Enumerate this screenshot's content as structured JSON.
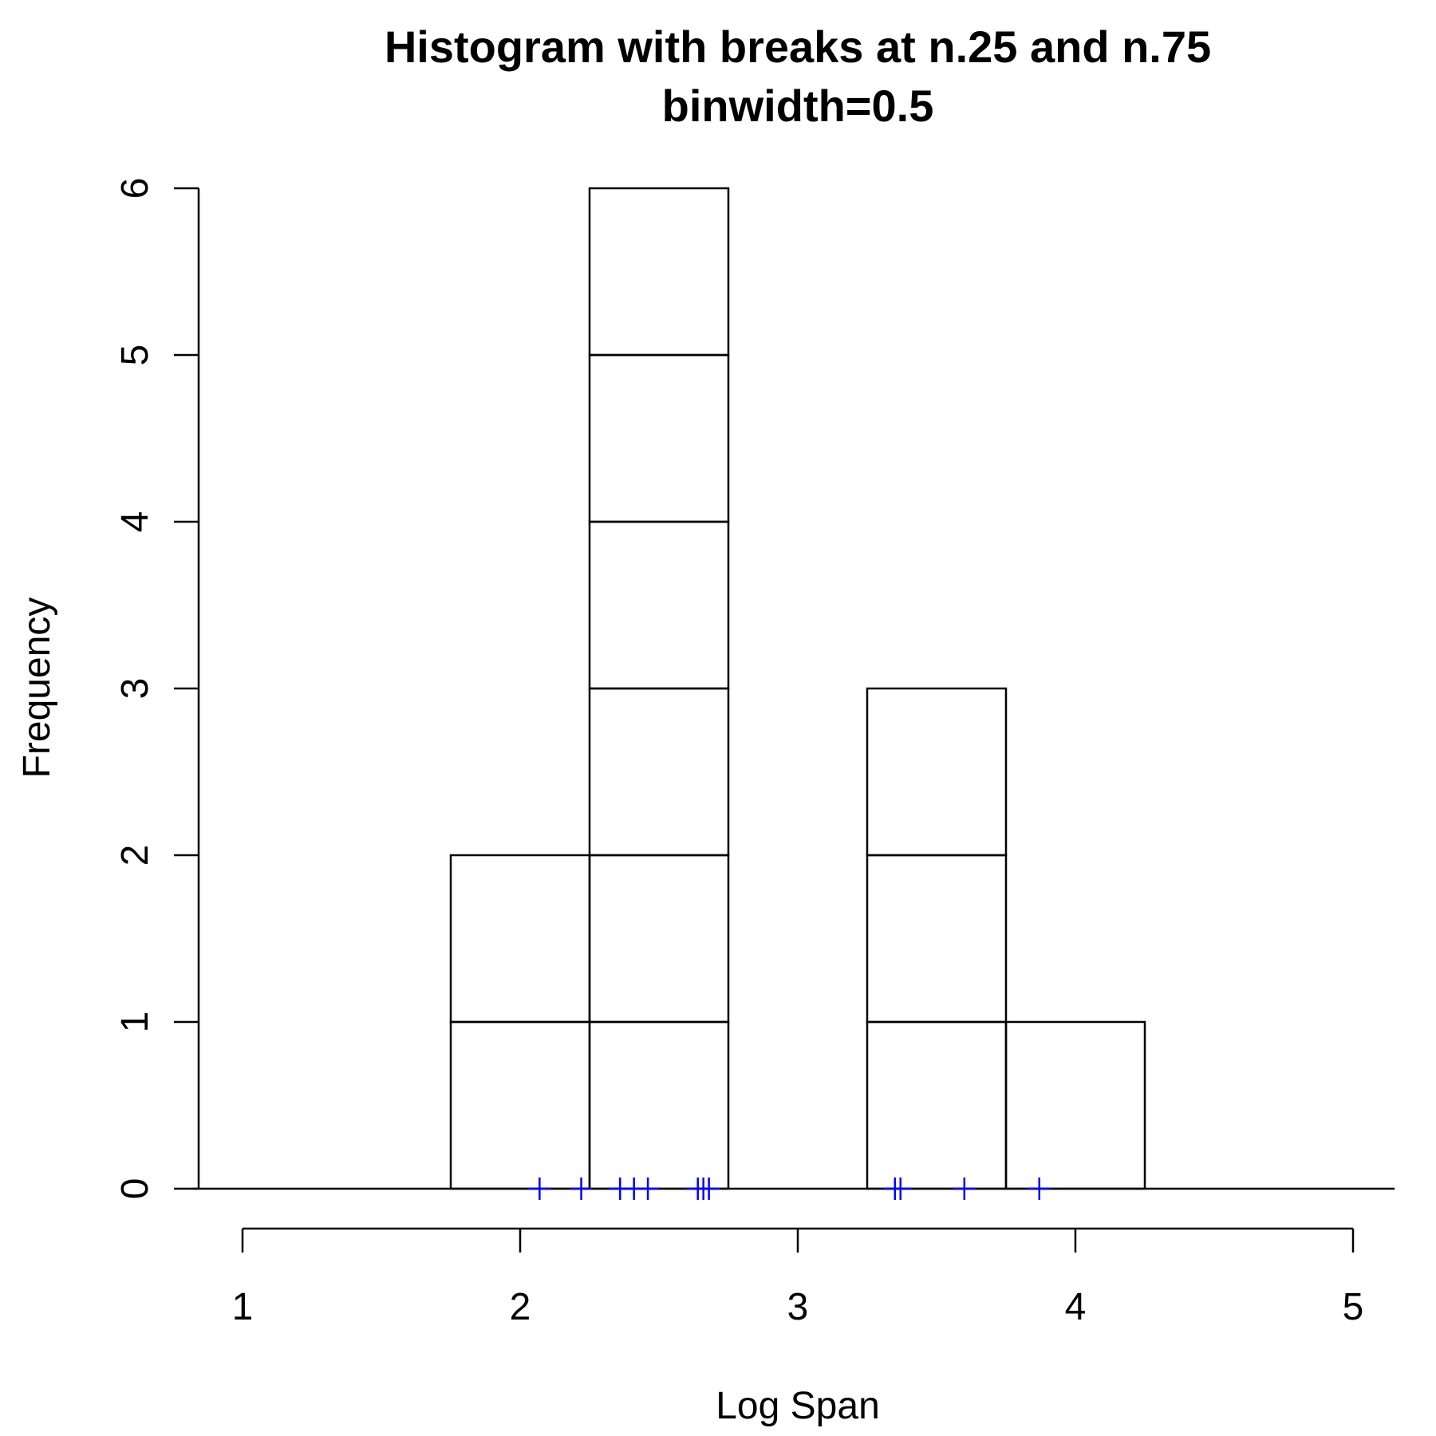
{
  "chart_data": {
    "type": "bar",
    "title": "Histogram with breaks at n.25 and n.75",
    "subtitle": "binwidth=0.5",
    "xlabel": "Log Span",
    "ylabel": "Frequency",
    "x_ticks": [
      "1",
      "2",
      "3",
      "4",
      "5"
    ],
    "y_ticks": [
      "0",
      "1",
      "2",
      "3",
      "4",
      "5",
      "6"
    ],
    "xlim": [
      0.82,
      5.15
    ],
    "ylim": [
      0,
      6
    ],
    "bins": [
      {
        "start": 1.75,
        "end": 2.25,
        "count": 2
      },
      {
        "start": 2.25,
        "end": 2.75,
        "count": 6
      },
      {
        "start": 2.75,
        "end": 3.25,
        "count": 0
      },
      {
        "start": 3.25,
        "end": 3.75,
        "count": 3
      },
      {
        "start": 3.75,
        "end": 4.25,
        "count": 1
      }
    ],
    "rug": [
      2.07,
      2.22,
      2.36,
      2.41,
      2.46,
      2.64,
      2.66,
      2.68,
      3.35,
      3.37,
      3.6,
      3.87
    ],
    "colors": {
      "bars": "#000000",
      "rug": "#0000ff",
      "background": "#ffffff"
    },
    "grid": false,
    "legend": "none"
  }
}
